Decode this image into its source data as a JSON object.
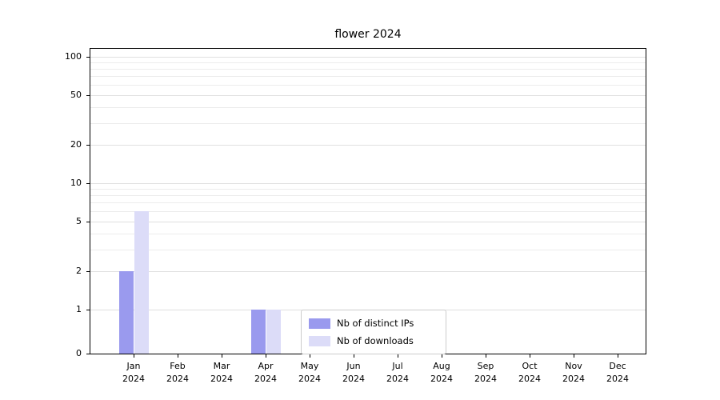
{
  "chart_data": {
    "type": "bar",
    "title": "flower 2024",
    "categories": [
      "Jan 2024",
      "Feb 2024",
      "Mar 2024",
      "Apr 2024",
      "May 2024",
      "Jun 2024",
      "Jul 2024",
      "Aug 2024",
      "Sep 2024",
      "Oct 2024",
      "Nov 2024",
      "Dec 2024"
    ],
    "series": [
      {
        "name": "Nb of distinct IPs",
        "color": "#9a9aee",
        "values": [
          2,
          0,
          0,
          1,
          0,
          0,
          0,
          0,
          0,
          0,
          0,
          0
        ]
      },
      {
        "name": "Nb of downloads",
        "color": "#dcdcf8",
        "values": [
          6,
          0,
          0,
          1,
          0,
          0,
          0,
          0,
          0,
          0,
          0,
          0
        ]
      }
    ],
    "xlabel": "",
    "ylabel": "",
    "yscale": "symlog",
    "yticks": [
      0,
      1,
      2,
      5,
      10,
      20,
      50,
      100
    ],
    "y_minor_gridlines": [
      3,
      4,
      6,
      7,
      8,
      9,
      30,
      40,
      60,
      70,
      80,
      90
    ],
    "ylim": [
      0,
      115
    ],
    "grid": "horizontal",
    "legend_position": "lower-center-inside"
  }
}
